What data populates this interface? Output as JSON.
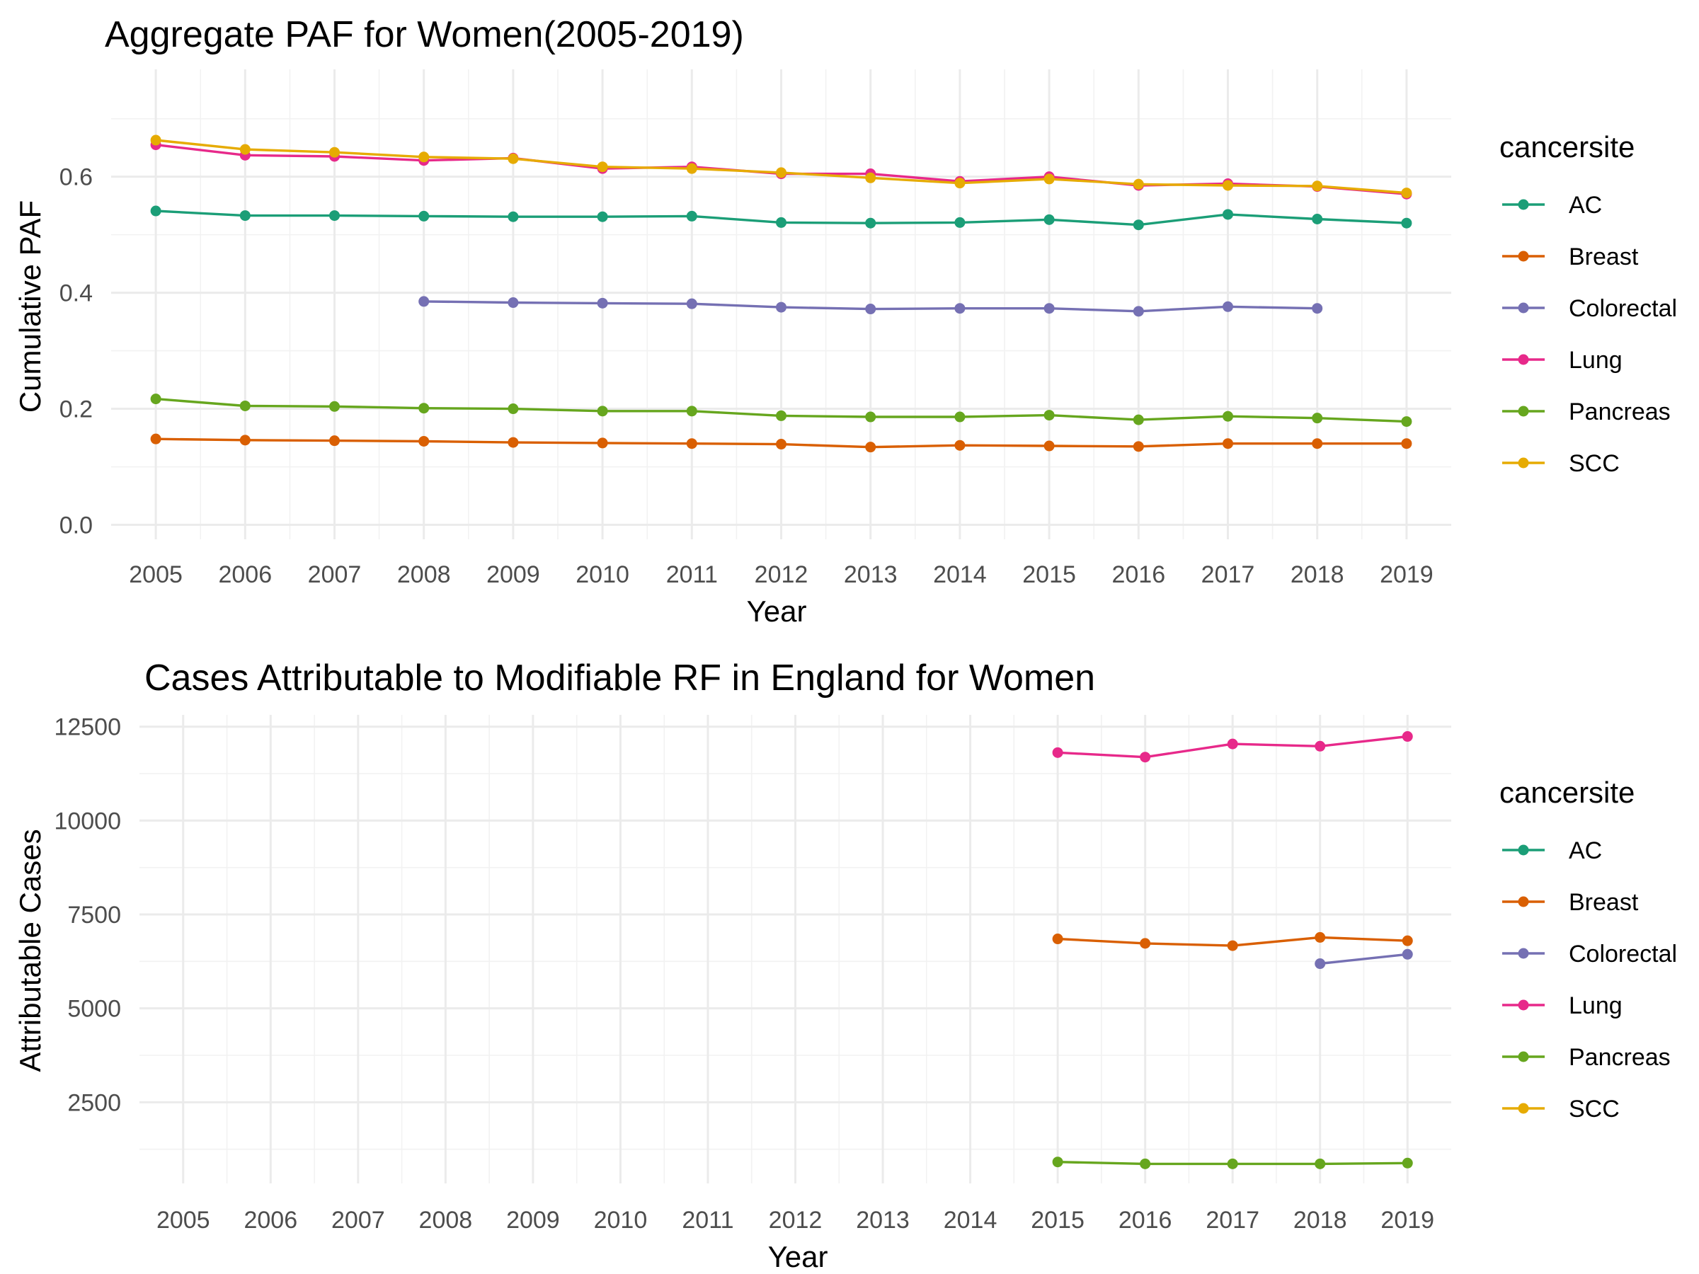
{
  "colors": {
    "AC": "#1b9e77",
    "Breast": "#d95f02",
    "Colorectal": "#7570b3",
    "Lung": "#e7298a",
    "Pancreas": "#66a61e",
    "SCC": "#e6ab02"
  },
  "chart_data": [
    {
      "type": "line",
      "title": "Aggregate PAF for Women(2005-2019)",
      "xlabel": "Year",
      "ylabel": "Cumulative PAF",
      "x": [
        2005,
        2006,
        2007,
        2008,
        2009,
        2010,
        2011,
        2012,
        2013,
        2014,
        2015,
        2016,
        2017,
        2018,
        2019
      ],
      "xlim": [
        2004.5,
        2019.5
      ],
      "ylim": [
        -0.025,
        0.785
      ],
      "yticks": [
        0.0,
        0.2,
        0.4,
        0.6
      ],
      "ytick_labels": [
        "0.0",
        "0.2",
        "0.4",
        "0.6"
      ],
      "grid": true,
      "legend": {
        "title": "cancersite",
        "position": "right",
        "entries": [
          "AC",
          "Breast",
          "Colorectal",
          "Lung",
          "Pancreas",
          "SCC"
        ]
      },
      "series": [
        {
          "name": "AC",
          "values": [
            0.541,
            0.533,
            0.533,
            0.532,
            0.531,
            0.531,
            0.532,
            0.521,
            0.52,
            0.521,
            0.526,
            0.517,
            0.535,
            0.527,
            0.52
          ]
        },
        {
          "name": "Breast",
          "values": [
            0.148,
            0.146,
            0.145,
            0.144,
            0.142,
            0.141,
            0.14,
            0.139,
            0.134,
            0.137,
            0.136,
            0.135,
            0.14,
            0.14,
            0.14
          ]
        },
        {
          "name": "Colorectal",
          "values": [
            null,
            null,
            null,
            0.385,
            0.383,
            0.382,
            0.381,
            0.375,
            0.372,
            0.373,
            0.373,
            0.368,
            0.376,
            0.373,
            null
          ]
        },
        {
          "name": "Lung",
          "values": [
            0.655,
            0.637,
            0.635,
            0.628,
            0.632,
            0.614,
            0.617,
            0.605,
            0.605,
            0.592,
            0.6,
            0.585,
            0.588,
            0.583,
            0.57
          ]
        },
        {
          "name": "Pancreas",
          "values": [
            0.217,
            0.205,
            0.204,
            0.201,
            0.2,
            0.196,
            0.196,
            0.188,
            0.186,
            0.186,
            0.189,
            0.181,
            0.187,
            0.184,
            0.178
          ]
        },
        {
          "name": "SCC",
          "values": [
            0.663,
            0.647,
            0.642,
            0.634,
            0.631,
            0.617,
            0.614,
            0.607,
            0.598,
            0.589,
            0.596,
            0.587,
            0.585,
            0.584,
            0.572
          ]
        }
      ]
    },
    {
      "type": "line",
      "title": "Cases Attributable to Modifiable RF in England for Women",
      "xlabel": "Year",
      "ylabel": "Attributable Cases",
      "x": [
        2005,
        2006,
        2007,
        2008,
        2009,
        2010,
        2011,
        2012,
        2013,
        2014,
        2015,
        2016,
        2017,
        2018,
        2019
      ],
      "xlim": [
        2004.5,
        2019.5
      ],
      "ylim": [
        339,
        12815
      ],
      "yticks": [
        2500,
        5000,
        7500,
        10000,
        12500
      ],
      "ytick_labels": [
        "2500",
        "5000",
        "7500",
        "10000",
        "12500"
      ],
      "grid": true,
      "legend": {
        "title": "cancersite",
        "position": "right",
        "entries": [
          "AC",
          "Breast",
          "Colorectal",
          "Lung",
          "Pancreas",
          "SCC"
        ]
      },
      "series": [
        {
          "name": "Breast",
          "values": [
            null,
            null,
            null,
            null,
            null,
            null,
            null,
            null,
            null,
            null,
            6850,
            6730,
            6670,
            6890,
            6800
          ]
        },
        {
          "name": "Colorectal",
          "values": [
            null,
            null,
            null,
            null,
            null,
            null,
            null,
            null,
            null,
            null,
            null,
            null,
            null,
            6190,
            6440
          ]
        },
        {
          "name": "Lung",
          "values": [
            null,
            null,
            null,
            null,
            null,
            null,
            null,
            null,
            null,
            null,
            11810,
            11690,
            12040,
            11980,
            12240
          ]
        },
        {
          "name": "Pancreas",
          "values": [
            null,
            null,
            null,
            null,
            null,
            null,
            null,
            null,
            null,
            null,
            910,
            860,
            860,
            860,
            880
          ]
        }
      ]
    }
  ]
}
